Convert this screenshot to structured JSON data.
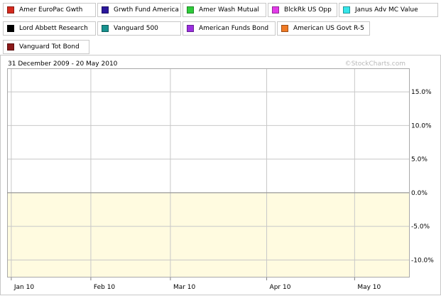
{
  "header": {
    "date_range": "31 December 2009 - 20 May 2010",
    "watermark": "©StockCharts.com"
  },
  "chart_data": {
    "type": "line",
    "x_dates": [
      "2009-12-31",
      "2010-01-04",
      "2010-01-05",
      "2010-01-06",
      "2010-01-07",
      "2010-01-08",
      "2010-01-11",
      "2010-01-12",
      "2010-01-13",
      "2010-01-14",
      "2010-01-15",
      "2010-01-19",
      "2010-01-20",
      "2010-01-21",
      "2010-01-22",
      "2010-01-25",
      "2010-01-26",
      "2010-01-27",
      "2010-01-28",
      "2010-01-29",
      "2010-02-01",
      "2010-02-02",
      "2010-02-03",
      "2010-02-04",
      "2010-02-05",
      "2010-02-08",
      "2010-02-09",
      "2010-02-10",
      "2010-02-11",
      "2010-02-12",
      "2010-02-16",
      "2010-02-17",
      "2010-02-18",
      "2010-02-19",
      "2010-02-22",
      "2010-02-23",
      "2010-02-24",
      "2010-02-25",
      "2010-02-26",
      "2010-03-01",
      "2010-03-02",
      "2010-03-03",
      "2010-03-04",
      "2010-03-05",
      "2010-03-08",
      "2010-03-09",
      "2010-03-10",
      "2010-03-11",
      "2010-03-12",
      "2010-03-15",
      "2010-03-16",
      "2010-03-17",
      "2010-03-18",
      "2010-03-19",
      "2010-03-22",
      "2010-03-23",
      "2010-03-24",
      "2010-03-25",
      "2010-03-26",
      "2010-03-29",
      "2010-03-30",
      "2010-03-31",
      "2010-04-01",
      "2010-04-05",
      "2010-04-06",
      "2010-04-07",
      "2010-04-08",
      "2010-04-09",
      "2010-04-12",
      "2010-04-13",
      "2010-04-14",
      "2010-04-15",
      "2010-04-16",
      "2010-04-19",
      "2010-04-20",
      "2010-04-21",
      "2010-04-22",
      "2010-04-23",
      "2010-04-26",
      "2010-04-27",
      "2010-04-28",
      "2010-04-29",
      "2010-04-30",
      "2010-05-03",
      "2010-05-04",
      "2010-05-05",
      "2010-05-06",
      "2010-05-07",
      "2010-05-10",
      "2010-05-11",
      "2010-05-12",
      "2010-05-13",
      "2010-05-14",
      "2010-05-17",
      "2010-05-18",
      "2010-05-19",
      "2010-05-20"
    ],
    "x_ticks": [
      {
        "date": "2010-01-04",
        "label": "Jan 10"
      },
      {
        "date": "2010-02-01",
        "label": "Feb 10"
      },
      {
        "date": "2010-03-01",
        "label": "Mar 10"
      },
      {
        "date": "2010-04-01",
        "label": "Apr 10"
      },
      {
        "date": "2010-05-03",
        "label": "May 10"
      }
    ],
    "y_ticks": [
      {
        "value": 15,
        "label": "15.0%"
      },
      {
        "value": 10,
        "label": "10.0%"
      },
      {
        "value": 5,
        "label": "5.0%"
      },
      {
        "value": 0,
        "label": "0.0%"
      },
      {
        "value": -5,
        "label": "-5.0%"
      },
      {
        "value": -10,
        "label": "-10.0%"
      }
    ],
    "ylim": [
      -12.5,
      18.5
    ],
    "grid": true,
    "legend_position": "top",
    "colors": {
      "plot_above_zero": "#ffffff",
      "plot_below_zero": "#fffbe0",
      "grid": "#c8c8c8",
      "axis_text": "#000000"
    },
    "series": [
      {
        "name": "Amer EuroPac Gwth",
        "color": "#d42a1e"
      },
      {
        "name": "Grwth Fund America",
        "color": "#2b179c"
      },
      {
        "name": "Amer Wash Mutual",
        "color": "#2ecc3a"
      },
      {
        "name": "BlckRk US Opp",
        "color": "#e23be8"
      },
      {
        "name": "Janus Adv MC Value",
        "color": "#36e6ea"
      },
      {
        "name": "Lord Abbett Research",
        "color": "#000000"
      },
      {
        "name": "Vanguard 500",
        "color": "#17928f"
      },
      {
        "name": "American Funds Bond",
        "color": "#9b30e0"
      },
      {
        "name": "American US Govt R-5",
        "color": "#f07a25"
      },
      {
        "name": "Vanguard Tot Bond",
        "color": "#8b1a1a"
      }
    ]
  }
}
